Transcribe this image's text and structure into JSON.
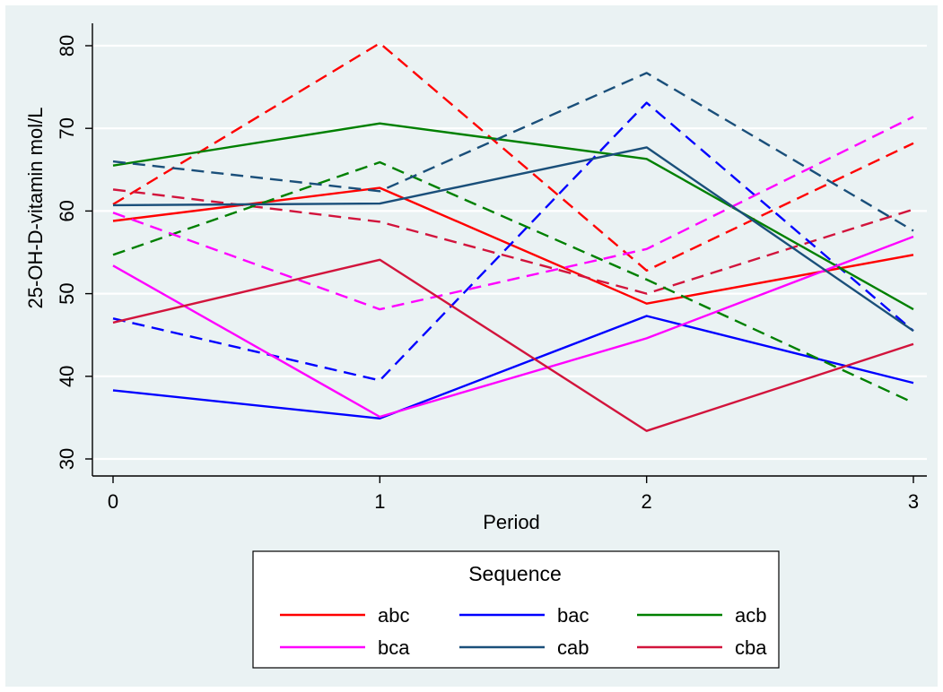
{
  "chart_data": {
    "type": "line",
    "xlabel": "Period",
    "ylabel": "25-OH-D-vitamin mol/L",
    "x": [
      0,
      1,
      2,
      3
    ],
    "xticks": [
      "0",
      "1",
      "2",
      "3"
    ],
    "yticks": [
      "30",
      "40",
      "50",
      "60",
      "70",
      "80"
    ],
    "xlim": [
      0,
      3
    ],
    "ylim": [
      30,
      80
    ],
    "grid": true,
    "legend": {
      "title": "Sequence",
      "position": "bottom",
      "entries": [
        {
          "name": "abc",
          "color": "#ff0000"
        },
        {
          "name": "bac",
          "color": "#0000ff"
        },
        {
          "name": "acb",
          "color": "#008000"
        },
        {
          "name": "bca",
          "color": "#ff00ff"
        },
        {
          "name": "cab",
          "color": "#1a4f7a"
        },
        {
          "name": "cba",
          "color": "#d2143c"
        }
      ]
    },
    "series": [
      {
        "name": "abc",
        "color": "#ff0000",
        "dash": false,
        "values": [
          58.8,
          62.8,
          48.8,
          54.7
        ]
      },
      {
        "name": "abc",
        "color": "#ff0000",
        "dash": true,
        "values": [
          60.8,
          80.3,
          52.8,
          68.2
        ]
      },
      {
        "name": "abc",
        "color": "#d2143c",
        "dash": true,
        "values": [
          62.6,
          58.7,
          50.0,
          60.2
        ]
      },
      {
        "name": "bac",
        "color": "#0000ff",
        "dash": false,
        "values": [
          38.3,
          34.9,
          47.3,
          39.2
        ]
      },
      {
        "name": "bac",
        "color": "#0000ff",
        "dash": true,
        "values": [
          47.0,
          39.5,
          73.1,
          45.5
        ]
      },
      {
        "name": "acb",
        "color": "#008000",
        "dash": false,
        "values": [
          65.5,
          70.6,
          66.3,
          48.1
        ]
      },
      {
        "name": "acb",
        "color": "#008000",
        "dash": true,
        "values": [
          54.7,
          65.9,
          51.7,
          36.8
        ]
      },
      {
        "name": "bca",
        "color": "#ff00ff",
        "dash": false,
        "values": [
          53.4,
          35.1,
          44.6,
          56.9
        ]
      },
      {
        "name": "bca",
        "color": "#ff00ff",
        "dash": true,
        "values": [
          59.8,
          48.1,
          55.4,
          71.4
        ]
      },
      {
        "name": "cab",
        "color": "#1a4f7a",
        "dash": false,
        "values": [
          60.7,
          60.9,
          67.7,
          45.5
        ]
      },
      {
        "name": "cab",
        "color": "#1a4f7a",
        "dash": true,
        "values": [
          66.0,
          62.4,
          76.7,
          57.6
        ]
      },
      {
        "name": "cba",
        "color": "#d2143c",
        "dash": false,
        "values": [
          46.5,
          54.1,
          33.4,
          43.9
        ]
      }
    ]
  }
}
